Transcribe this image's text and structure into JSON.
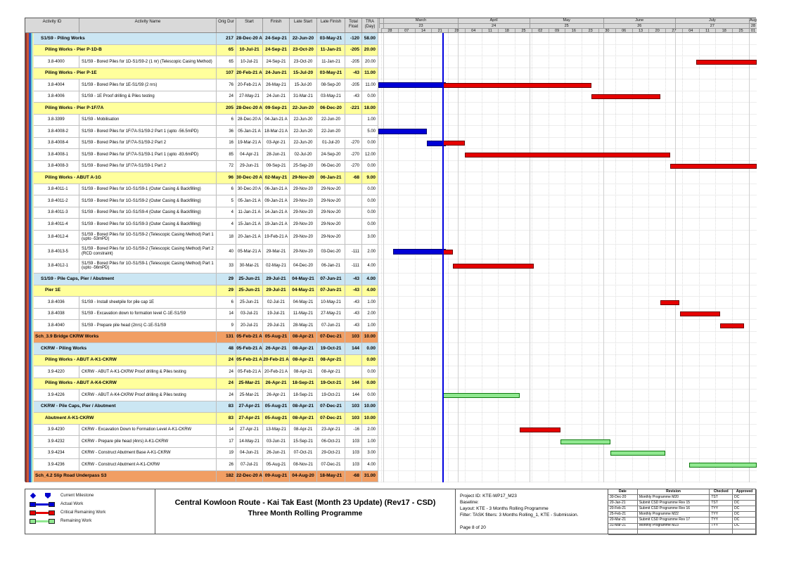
{
  "chart_data": {
    "type": "table",
    "subtype": "gantt",
    "title": "Central Kowloon Route - Kai Tak East (Month 23 Update) (Rev17 - CSD)",
    "subtitle": "Three Month Rolling Programme",
    "columns": [
      "Activity ID",
      "Activity Name",
      "Orig Dur",
      "Start",
      "Finish",
      "Late Start",
      "Late Finish",
      "Total Float",
      "TRA (Day)"
    ],
    "timescale": {
      "origin": "2021-02-28",
      "data_date": "2021-03-26",
      "months": [
        {
          "label": "",
          "num": "",
          "date": "2021-02-27"
        },
        {
          "label": "March",
          "num": "23",
          "date": "2021-03-01"
        },
        {
          "label": "April",
          "num": "24",
          "date": "2021-04-01"
        },
        {
          "label": "May",
          "num": "25",
          "date": "2021-05-01"
        },
        {
          "label": "June",
          "num": "26",
          "date": "2021-06-01"
        },
        {
          "label": "July",
          "num": "27",
          "date": "2021-07-01"
        },
        {
          "label": "August",
          "num": "28",
          "date": "2021-08-01"
        }
      ],
      "weeks": [
        {
          "label": "28",
          "date": "2021-02-28"
        },
        {
          "label": "07",
          "date": "2021-03-07"
        },
        {
          "label": "14",
          "date": "2021-03-14"
        },
        {
          "label": "21",
          "date": "2021-03-21"
        },
        {
          "label": "28",
          "date": "2021-03-28"
        },
        {
          "label": "04",
          "date": "2021-04-04"
        },
        {
          "label": "11",
          "date": "2021-04-11"
        },
        {
          "label": "18",
          "date": "2021-04-18"
        },
        {
          "label": "25",
          "date": "2021-04-25"
        },
        {
          "label": "02",
          "date": "2021-05-02"
        },
        {
          "label": "09",
          "date": "2021-05-09"
        },
        {
          "label": "16",
          "date": "2021-05-16"
        },
        {
          "label": "23",
          "date": "2021-05-23"
        },
        {
          "label": "30",
          "date": "2021-05-30"
        },
        {
          "label": "06",
          "date": "2021-06-06"
        },
        {
          "label": "13",
          "date": "2021-06-13"
        },
        {
          "label": "20",
          "date": "2021-06-20"
        },
        {
          "label": "27",
          "date": "2021-06-27"
        },
        {
          "label": "04",
          "date": "2021-07-04"
        },
        {
          "label": "11",
          "date": "2021-07-11"
        },
        {
          "label": "18",
          "date": "2021-07-18"
        },
        {
          "label": "25",
          "date": "2021-07-25"
        },
        {
          "label": "01",
          "date": "2021-08-01"
        }
      ]
    },
    "rows": [
      {
        "t": "g",
        "lv": 1,
        "nm": "S1/S9 - Piling Works",
        "du": "217",
        "st": "28-Dec-20 A",
        "fi": "24-Sep-21",
        "ls": "22-Jun-20",
        "lf": "03-May-21",
        "fl": "-120",
        "tr": "58.00"
      },
      {
        "t": "g",
        "lv": 2,
        "nm": "Piling Works - Pier P-1D-B",
        "du": "65",
        "st": "10-Jul-21",
        "fi": "24-Sep-21",
        "ls": "23-Oct-20",
        "lf": "11-Jan-21",
        "fl": "-205",
        "tr": "20.00"
      },
      {
        "t": "a",
        "id": "3.8-4000",
        "nm": "S1/S9 - Bored Piles for 1D-S1/S9-2 (1 nr) (Telescopic Casing Method)",
        "du": "65",
        "st": "10-Jul-21",
        "fi": "24-Sep-21",
        "ls": "23-Oct-20",
        "lf": "11-Jan-21",
        "fl": "-205",
        "tr": "20.00",
        "bars": [
          {
            "c": "c",
            "s": "2021-07-10",
            "e": "2021-09-24"
          }
        ]
      },
      {
        "t": "g",
        "lv": 2,
        "nm": "Piling Works - Pier P-1E",
        "du": "107",
        "st": "20-Feb-21 A",
        "fi": "24-Jun-21",
        "ls": "15-Jul-20",
        "lf": "03-May-21",
        "fl": "-43",
        "tr": "11.00"
      },
      {
        "t": "a",
        "id": "3.8-4004",
        "nm": "S1/S9 - Bored Piles for 1E-S1/S9 (2 nrs)",
        "du": "76",
        "st": "20-Feb-21 A",
        "fi": "26-May-21",
        "ls": "15-Jul-20",
        "lf": "08-Sep-20",
        "fl": "-205",
        "tr": "11.00",
        "bars": [
          {
            "c": "a",
            "s": "2021-02-20",
            "e": "2021-03-26"
          },
          {
            "c": "c",
            "s": "2021-03-26",
            "e": "2021-05-26"
          }
        ]
      },
      {
        "t": "a",
        "id": "3.8-4006",
        "nm": "S1/S9 - 1E Proof drilling & Piles testing",
        "du": "24",
        "st": "27-May-21",
        "fi": "24-Jun-21",
        "ls": "31-Mar-21",
        "lf": "03-May-21",
        "fl": "-43",
        "tr": "0.00",
        "bars": [
          {
            "c": "c",
            "s": "2021-05-27",
            "e": "2021-06-24"
          }
        ]
      },
      {
        "t": "g",
        "lv": 2,
        "nm": "Piling Works - Pier P-1F/7A",
        "du": "205",
        "st": "28-Dec-20 A",
        "fi": "09-Sep-21",
        "ls": "22-Jun-20",
        "lf": "06-Dec-20",
        "fl": "-221",
        "tr": "18.00"
      },
      {
        "t": "a",
        "id": "3.8-3399",
        "nm": "S1/S9 - Mobilisation",
        "du": "6",
        "st": "28-Dec-20 A",
        "fi": "04-Jan-21 A",
        "ls": "22-Jun-20",
        "lf": "22-Jun-20",
        "fl": "",
        "tr": "1.00"
      },
      {
        "t": "a",
        "id": "3.8-4008-2",
        "nm": "S1/S9 - Bored Piles for 1F/7A-S1/S9-2 Part 1 (upto -56.5mPD)",
        "du": "36",
        "st": "05-Jan-21 A",
        "fi": "18-Mar-21 A",
        "ls": "22-Jun-20",
        "lf": "22-Jun-20",
        "fl": "",
        "tr": "5.00",
        "bars": [
          {
            "c": "a",
            "s": "2021-01-05",
            "e": "2021-03-18"
          }
        ]
      },
      {
        "t": "a",
        "id": "3.8-4008-4",
        "nm": "S1/S9 - Bored Piles for 1F/7A-S1/S9-2 Part 2",
        "du": "16",
        "st": "19-Mar-21 A",
        "fi": "03-Apr-21",
        "ls": "22-Jun-20",
        "lf": "01-Jul-20",
        "fl": "-270",
        "tr": "0.00",
        "bars": [
          {
            "c": "a",
            "s": "2021-03-19",
            "e": "2021-03-26"
          },
          {
            "c": "c",
            "s": "2021-03-26",
            "e": "2021-04-03"
          }
        ]
      },
      {
        "t": "a",
        "id": "3.8-4008-1",
        "nm": "S1/S9 - Bored Piles for 1F/7A-S1/S9-1 Part 1 (upto -83.6mPD)",
        "du": "85",
        "st": "04-Apr-21",
        "fi": "28-Jun-21",
        "ls": "02-Jul-20",
        "lf": "24-Sep-20",
        "fl": "-270",
        "tr": "12.00",
        "bars": [
          {
            "c": "c",
            "s": "2021-04-04",
            "e": "2021-06-28"
          }
        ]
      },
      {
        "t": "a",
        "id": "3.8-4008-3",
        "nm": "S1/S9 - Bored Piles for 1F/7A-S1/S9-1 Part 2",
        "du": "72",
        "st": "29-Jun-21",
        "fi": "09-Sep-21",
        "ls": "25-Sep-20",
        "lf": "06-Dec-20",
        "fl": "-270",
        "tr": "0.00",
        "bars": [
          {
            "c": "c",
            "s": "2021-06-29",
            "e": "2021-09-09"
          }
        ]
      },
      {
        "t": "g",
        "lv": 2,
        "nm": "Piling Works - ABUT A-1G",
        "du": "96",
        "st": "30-Dec-20 A",
        "fi": "02-May-21",
        "ls": "29-Nov-20",
        "lf": "06-Jan-21",
        "fl": "-68",
        "tr": "9.00"
      },
      {
        "t": "a",
        "id": "3.8-4011-1",
        "nm": "S1/S9 - Bored Piles for 1G-S1/S9-1 (Outer Casing & Backfilling)",
        "du": "6",
        "st": "30-Dec-20 A",
        "fi": "06-Jan-21 A",
        "ls": "29-Nov-20",
        "lf": "29-Nov-20",
        "fl": "",
        "tr": "0.00"
      },
      {
        "t": "a",
        "id": "3.8-4011-2",
        "nm": "S1/S9 - Bored Piles for 1G-S1/S9-2 (Outer Casing & Backfilling)",
        "du": "5",
        "st": "05-Jan-21 A",
        "fi": "09-Jan-21 A",
        "ls": "29-Nov-20",
        "lf": "29-Nov-20",
        "fl": "",
        "tr": "0.00"
      },
      {
        "t": "a",
        "id": "3.8-4011-3",
        "nm": "S1/S9 - Bored Piles for 1G-S1/S9-4 (Outer Casing & Backfilling)",
        "du": "4",
        "st": "11-Jan-21 A",
        "fi": "14-Jan-21 A",
        "ls": "29-Nov-20",
        "lf": "29-Nov-20",
        "fl": "",
        "tr": "0.00"
      },
      {
        "t": "a",
        "id": "3.8-4011-4",
        "nm": "S1/S9 - Bored Piles for 1G-S1/S9-3 (Outer Casing & Backfilling)",
        "du": "4",
        "st": "15-Jan-21 A",
        "fi": "19-Jan-21 A",
        "ls": "29-Nov-20",
        "lf": "29-Nov-20",
        "fl": "",
        "tr": "0.00"
      },
      {
        "t": "a",
        "tall": true,
        "id": "3.8-4012-4",
        "nm": "S1/S9 - Bored Piles for 1G-S1/S9-2 (Telescopic Casing Method) Part 1 (upto -53mPD)",
        "du": "18",
        "st": "20-Jan-21 A",
        "fi": "19-Feb-21 A",
        "ls": "29-Nov-20",
        "lf": "29-Nov-20",
        "fl": "",
        "tr": "3.00"
      },
      {
        "t": "a",
        "tall": true,
        "id": "3.8-4013-5",
        "nm": "S1/S9 - Bored Piles for 1G-S1/S9-2 (Telescopic Casing Method) Part 2 (RCD constraint)",
        "du": "40",
        "st": "05-Mar-21 A",
        "fi": "29-Mar-21",
        "ls": "29-Nov-20",
        "lf": "03-Dec-20",
        "fl": "-111",
        "tr": "2.00",
        "bars": [
          {
            "c": "a",
            "s": "2021-03-05",
            "e": "2021-03-26"
          },
          {
            "c": "c",
            "s": "2021-03-26",
            "e": "2021-03-29"
          }
        ]
      },
      {
        "t": "a",
        "tall": true,
        "id": "3.8-4012-1",
        "nm": "S1/S9 - Bored Piles for 1G-S1/S9-1 (Telescopic Casing Method) Part 1 (upto -56mPD)",
        "du": "33",
        "st": "30-Mar-21",
        "fi": "02-May-21",
        "ls": "04-Dec-20",
        "lf": "06-Jan-21",
        "fl": "-111",
        "tr": "4.00",
        "bars": [
          {
            "c": "c",
            "s": "2021-03-30",
            "e": "2021-05-02"
          }
        ]
      },
      {
        "t": "g",
        "lv": 1,
        "nm": "S1/S9 - Pile Caps, Pier / Abutment",
        "du": "29",
        "st": "25-Jun-21",
        "fi": "29-Jul-21",
        "ls": "04-May-21",
        "lf": "07-Jun-21",
        "fl": "-43",
        "tr": "4.00"
      },
      {
        "t": "g",
        "lv": 2,
        "nm": "Pier 1E",
        "du": "29",
        "st": "25-Jun-21",
        "fi": "29-Jul-21",
        "ls": "04-May-21",
        "lf": "07-Jun-21",
        "fl": "-43",
        "tr": "4.00"
      },
      {
        "t": "a",
        "id": "3.8-4036",
        "nm": "S1/S9 - Install sheetpile for pile cap 1E",
        "du": "6",
        "st": "25-Jun-21",
        "fi": "02-Jul-21",
        "ls": "04-May-21",
        "lf": "10-May-21",
        "fl": "-43",
        "tr": "1.00",
        "bars": [
          {
            "c": "c",
            "s": "2021-06-25",
            "e": "2021-07-02"
          }
        ]
      },
      {
        "t": "a",
        "id": "3.8-4038",
        "nm": "S1/S9 - Excavation down to formation level C-1E-S1/S9",
        "du": "14",
        "st": "03-Jul-21",
        "fi": "19-Jul-21",
        "ls": "11-May-21",
        "lf": "27-May-21",
        "fl": "-43",
        "tr": "2.00",
        "bars": [
          {
            "c": "c",
            "s": "2021-07-03",
            "e": "2021-07-19"
          }
        ]
      },
      {
        "t": "a",
        "id": "3.8-4040",
        "nm": "S1/S9 - Prepare pile head (2nrs) C-1E-S1/S9",
        "du": "9",
        "st": "20-Jul-21",
        "fi": "29-Jul-21",
        "ls": "28-May-21",
        "lf": "07-Jun-21",
        "fl": "-43",
        "tr": "1.00",
        "bars": [
          {
            "c": "c",
            "s": "2021-07-20",
            "e": "2021-07-29"
          }
        ]
      },
      {
        "t": "g",
        "lv": 0,
        "nm": "Sch_3.9 Bridge CKRW Works",
        "du": "131",
        "st": "05-Feb-21 A",
        "fi": "05-Aug-21",
        "ls": "08-Apr-21",
        "lf": "07-Dec-21",
        "fl": "103",
        "tr": "10.00"
      },
      {
        "t": "g",
        "lv": 1,
        "nm": "CKRW - Piling Works",
        "du": "48",
        "st": "05-Feb-21 A",
        "fi": "26-Apr-21",
        "ls": "08-Apr-21",
        "lf": "19-Oct-21",
        "fl": "144",
        "tr": "0.00"
      },
      {
        "t": "g",
        "lv": 2,
        "nm": "Piling Works - ABUT A-K1-CKRW",
        "du": "24",
        "st": "05-Feb-21 A",
        "fi": "20-Feb-21 A",
        "ls": "08-Apr-21",
        "lf": "08-Apr-21",
        "fl": "",
        "tr": "0.00"
      },
      {
        "t": "a",
        "id": "3.9-4220",
        "nm": "CKRW - ABUT A-K1-CKRW Proof drilling & Piles testing",
        "du": "24",
        "st": "05-Feb-21 A",
        "fi": "20-Feb-21 A",
        "ls": "08-Apr-21",
        "lf": "08-Apr-21",
        "fl": "",
        "tr": "0.00"
      },
      {
        "t": "g",
        "lv": 2,
        "nm": "Piling Works - ABUT A-K4-CKRW",
        "du": "24",
        "st": "25-Mar-21",
        "fi": "26-Apr-21",
        "ls": "18-Sep-21",
        "lf": "19-Oct-21",
        "fl": "144",
        "tr": "0.00"
      },
      {
        "t": "a",
        "id": "3.9-4226",
        "nm": "CKRW - ABUT A-K4-CKRW Proof drilling & Piles testing",
        "du": "24",
        "st": "25-Mar-21",
        "fi": "26-Apr-21",
        "ls": "18-Sep-21",
        "lf": "19-Oct-21",
        "fl": "144",
        "tr": "0.00",
        "bars": [
          {
            "c": "r",
            "s": "2021-03-26",
            "e": "2021-04-26"
          }
        ]
      },
      {
        "t": "g",
        "lv": 1,
        "nm": "CKRW - Pile Caps, Pier / Abutment",
        "du": "83",
        "st": "27-Apr-21",
        "fi": "05-Aug-21",
        "ls": "08-Apr-21",
        "lf": "07-Dec-21",
        "fl": "103",
        "tr": "10.00"
      },
      {
        "t": "g",
        "lv": 2,
        "nm": "Abutment A-K1-CKRW",
        "du": "83",
        "st": "27-Apr-21",
        "fi": "05-Aug-21",
        "ls": "08-Apr-21",
        "lf": "07-Dec-21",
        "fl": "103",
        "tr": "10.00"
      },
      {
        "t": "a",
        "id": "3.9-4230",
        "nm": "CKRW - Excavation Down to Formation Level A-K1-CKRW",
        "du": "14",
        "st": "27-Apr-21",
        "fi": "13-May-21",
        "ls": "08-Apr-21",
        "lf": "23-Apr-21",
        "fl": "-16",
        "tr": "2.00",
        "bars": [
          {
            "c": "c",
            "s": "2021-04-27",
            "e": "2021-05-13"
          }
        ]
      },
      {
        "t": "a",
        "id": "3.9-4232",
        "nm": "CKRW - Prepare pile head (4nrs) A-K1-CKRW",
        "du": "17",
        "st": "14-May-21",
        "fi": "03-Jun-21",
        "ls": "15-Sep-21",
        "lf": "06-Oct-21",
        "fl": "103",
        "tr": "1.00",
        "bars": [
          {
            "c": "r",
            "s": "2021-05-14",
            "e": "2021-06-03"
          }
        ]
      },
      {
        "t": "a",
        "id": "3.9-4234",
        "nm": "CKRW - Construct Abutment Base A-K1-CKRW",
        "du": "19",
        "st": "04-Jun-21",
        "fi": "26-Jun-21",
        "ls": "07-Oct-21",
        "lf": "29-Oct-21",
        "fl": "103",
        "tr": "3.00",
        "bars": [
          {
            "c": "r",
            "s": "2021-06-04",
            "e": "2021-06-26"
          }
        ]
      },
      {
        "t": "a",
        "id": "3.9-4236",
        "nm": "CKRW - Construct Abutment A-K1-CKRW",
        "du": "26",
        "st": "07-Jul-21",
        "fi": "05-Aug-21",
        "ls": "08-Nov-21",
        "lf": "07-Dec-21",
        "fl": "103",
        "tr": "4.00",
        "bars": [
          {
            "c": "r",
            "s": "2021-07-07",
            "e": "2021-08-05"
          }
        ]
      },
      {
        "t": "g",
        "lv": 0,
        "nm": "Sch_4.2 Slip Road Underpass S3",
        "du": "182",
        "st": "22-Dec-20 A",
        "fi": "09-Aug-21",
        "ls": "04-Aug-20",
        "lf": "18-May-21",
        "fl": "-68",
        "tr": "31.00"
      }
    ],
    "bar_colors": {
      "actual": "#0000d6",
      "critical": "#e60000",
      "remaining": "#90e890"
    },
    "group_colors": {
      "level0": "#f19e63",
      "level1": "#cbe6f3",
      "level2": "#ffff9c"
    },
    "stripe_colors": [
      "#8b3333",
      "#cc5533",
      "#3355bb",
      "#66ccdd",
      "#eeeebb"
    ]
  },
  "legend": {
    "items": [
      {
        "type": "milestone",
        "label": "Current Milestone"
      },
      {
        "type": "actual",
        "label": "Actual Work"
      },
      {
        "type": "critical",
        "label": "Critical Remaining Work"
      },
      {
        "type": "remaining",
        "label": "Remaining Work"
      }
    ]
  },
  "footer": {
    "title1": "Central Kowloon Route - Kai Tak East (Month 23 Update) (Rev17 - CSD)",
    "title2": "Three Month Rolling Programme",
    "project_id": "Project ID: KTE-WP17_M23",
    "baseline": "Baseline:",
    "layout": "Layout: KTE - 3 Months Rolling Programme",
    "filter": "Filter: TASK filters: 3 Months Rolling_1, KTE - Submission.",
    "page": "Page 8 of 20",
    "revision_table": {
      "headers": [
        "Date",
        "Revision",
        "Checked",
        "Approved"
      ],
      "rows": [
        [
          "30-Dec-20",
          "Monthly Programme M20",
          "TST",
          "DC"
        ],
        [
          "20-Jan-21",
          "Submit CSD Programme Rev 15",
          "TST",
          "DC"
        ],
        [
          "20-Feb-21",
          "Submit CSD Programme Rev 16",
          "TYY",
          "DC"
        ],
        [
          "25-Feb-21",
          "Monthly Programme M22",
          "TYY",
          "DC"
        ],
        [
          "20-Mar-21",
          "Submit CSD Programme Rev 17",
          "TYY",
          "DC"
        ],
        [
          "31-Mar-21",
          "Monthly Programme M23",
          "TYY",
          "DC"
        ],
        [
          "",
          "",
          "",
          ""
        ]
      ]
    }
  }
}
